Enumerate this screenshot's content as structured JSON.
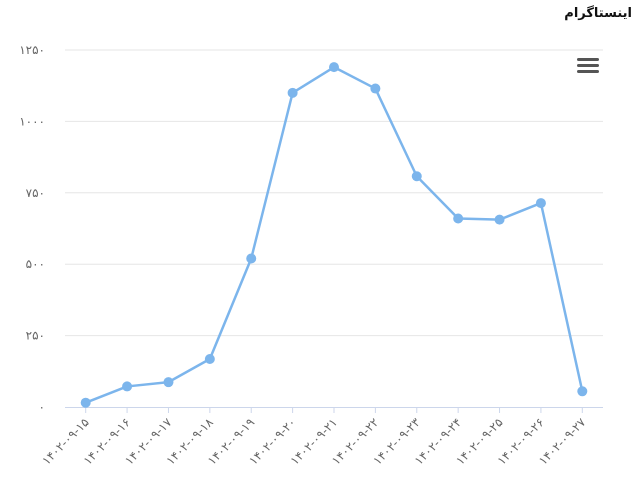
{
  "chart_data": {
    "type": "line",
    "title": "اینستاگرام",
    "categories": [
      "۱۴۰۲-۰۹-۱۵",
      "۱۴۰۲-۰۹-۱۶",
      "۱۴۰۲-۰۹-۱۷",
      "۱۴۰۲-۰۹-۱۸",
      "۱۴۰۲-۰۹-۱۹",
      "۱۴۰۲-۰۹-۲۰",
      "۱۴۰۲-۰۹-۲۱",
      "۱۴۰۲-۰۹-۲۲",
      "۱۴۰۲-۰۹-۲۳",
      "۱۴۰۲-۰۹-۲۴",
      "۱۴۰۲-۰۹-۲۵",
      "۱۴۰۲-۰۹-۲۶",
      "۱۴۰۲-۰۹-۲۷"
    ],
    "series": [
      {
        "values": [
          15,
          72,
          87,
          168,
          520,
          1100,
          1190,
          1115,
          808,
          660,
          656,
          714,
          55
        ]
      }
    ],
    "yticks": [
      0,
      250,
      500,
      750,
      1000,
      1250
    ],
    "ytick_labels": [
      "۰",
      "۲۵۰",
      "۵۰۰",
      "۷۵۰",
      "۱۰۰۰",
      "۱۲۵۰"
    ],
    "ylim": [
      0,
      1250
    ],
    "grid": true,
    "colors": {
      "line": "#7cb5ec",
      "grid": "#e6e6e6",
      "axis": "#ccd6eb",
      "label": "#666666"
    }
  },
  "menu": {
    "icon": "hamburger-menu-icon"
  }
}
